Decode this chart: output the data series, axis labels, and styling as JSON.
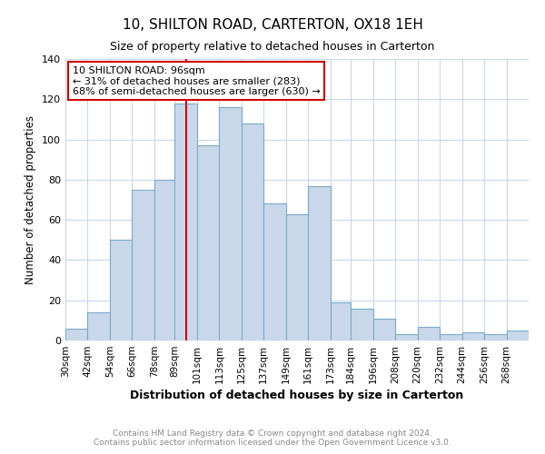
{
  "title": "10, SHILTON ROAD, CARTERTON, OX18 1EH",
  "subtitle": "Size of property relative to detached houses in Carterton",
  "xlabel": "Distribution of detached houses by size in Carterton",
  "ylabel": "Number of detached properties",
  "bin_labels": [
    "30sqm",
    "42sqm",
    "54sqm",
    "66sqm",
    "78sqm",
    "89sqm",
    "101sqm",
    "113sqm",
    "125sqm",
    "137sqm",
    "149sqm",
    "161sqm",
    "173sqm",
    "184sqm",
    "196sqm",
    "208sqm",
    "220sqm",
    "232sqm",
    "244sqm",
    "256sqm",
    "268sqm"
  ],
  "bar_heights": [
    6,
    14,
    50,
    75,
    80,
    118,
    97,
    116,
    108,
    68,
    63,
    77,
    19,
    16,
    11,
    3,
    7,
    3,
    4,
    3,
    5
  ],
  "bar_color": "#c8d8ea",
  "bar_edge_color": "#7aaac8",
  "ylim": [
    0,
    140
  ],
  "yticks": [
    0,
    20,
    40,
    60,
    80,
    100,
    120,
    140
  ],
  "property_line_x": 95,
  "property_line_label": "10 SHILTON ROAD: 96sqm",
  "annotation_line1": "← 31% of detached houses are smaller (283)",
  "annotation_line2": "68% of semi-detached houses are larger (630) →",
  "annotation_box_color": "#ffffff",
  "annotation_box_edge": "#cc0000",
  "vline_color": "#cc0000",
  "footnote1": "Contains HM Land Registry data © Crown copyright and database right 2024.",
  "footnote2": "Contains public sector information licensed under the Open Government Licence v3.0.",
  "bin_edges": [
    30,
    42,
    54,
    66,
    78,
    89,
    101,
    113,
    125,
    137,
    149,
    161,
    173,
    184,
    196,
    208,
    220,
    232,
    244,
    256,
    268,
    280
  ],
  "background_color": "#ffffff",
  "grid_color": "#c8d8ea"
}
